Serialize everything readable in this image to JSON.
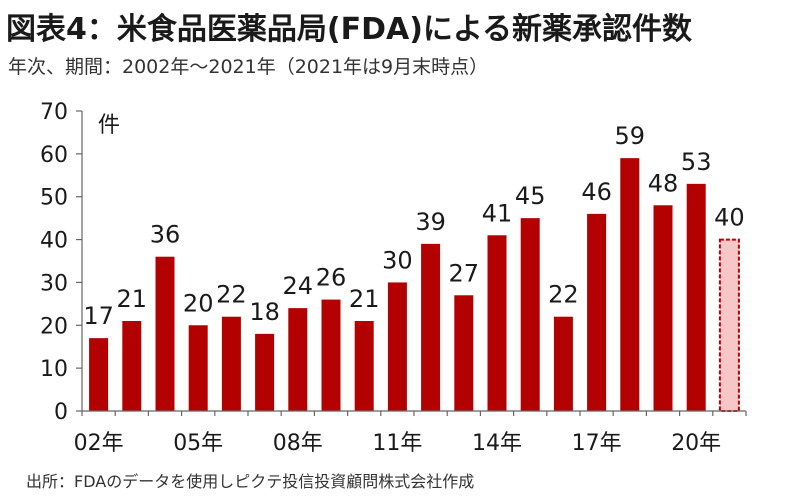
{
  "title": "図表4：米食品医薬品局(FDA)による新薬承認件数",
  "subtitle": "年次、期間：2002年～2021年（2021年は9月末時点）",
  "source": "出所：FDAのデータを使用しピクテ投信投資顧問株式会社作成",
  "colors": {
    "bar": "#b30000",
    "bar_highlight_fill": "#f7c6c6",
    "bar_highlight_stroke": "#c00000",
    "axis": "#666666"
  },
  "chart_data": {
    "type": "bar",
    "ylabel": "件",
    "ylim": [
      0,
      70
    ],
    "yticks": [
      0,
      10,
      20,
      30,
      40,
      50,
      60,
      70
    ],
    "categories": [
      "2002",
      "2003",
      "2004",
      "2005",
      "2006",
      "2007",
      "2008",
      "2009",
      "2010",
      "2011",
      "2012",
      "2013",
      "2014",
      "2015",
      "2016",
      "2017",
      "2018",
      "2019",
      "2020",
      "2021"
    ],
    "values": [
      17,
      21,
      36,
      20,
      22,
      18,
      24,
      26,
      21,
      30,
      39,
      27,
      41,
      45,
      22,
      46,
      59,
      48,
      53,
      40
    ],
    "xtick_labels": [
      "02年",
      "05年",
      "08年",
      "11年",
      "14年",
      "17年",
      "20年"
    ],
    "xtick_categories": [
      "2002",
      "2005",
      "2008",
      "2011",
      "2014",
      "2017",
      "2020"
    ],
    "highlight_last": true,
    "grid": false
  }
}
